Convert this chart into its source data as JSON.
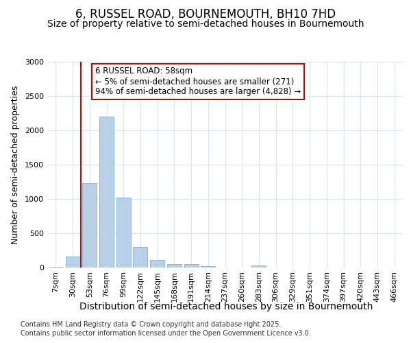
{
  "title_line1": "6, RUSSEL ROAD, BOURNEMOUTH, BH10 7HD",
  "title_line2": "Size of property relative to semi-detached houses in Bournemouth",
  "xlabel": "Distribution of semi-detached houses by size in Bournemouth",
  "ylabel": "Number of semi-detached properties",
  "footnote_line1": "Contains HM Land Registry data © Crown copyright and database right 2025.",
  "footnote_line2": "Contains public sector information licensed under the Open Government Licence v3.0.",
  "bar_labels": [
    "7sqm",
    "30sqm",
    "53sqm",
    "76sqm",
    "99sqm",
    "122sqm",
    "145sqm",
    "168sqm",
    "191sqm",
    "214sqm",
    "237sqm",
    "260sqm",
    "283sqm",
    "306sqm",
    "329sqm",
    "351sqm",
    "374sqm",
    "397sqm",
    "420sqm",
    "443sqm",
    "466sqm"
  ],
  "bar_values": [
    10,
    160,
    1230,
    2200,
    1020,
    300,
    110,
    55,
    50,
    25,
    5,
    0,
    30,
    0,
    0,
    0,
    0,
    0,
    0,
    0,
    0
  ],
  "bar_color": "#b8d0e8",
  "bar_edge_color": "#7aafd4",
  "vline_x": 1.5,
  "annotation_title": "6 RUSSEL ROAD: 58sqm",
  "annotation_line1": "← 5% of semi-detached houses are smaller (271)",
  "annotation_line2": "94% of semi-detached houses are larger (4,828) →",
  "annotation_box_color": "#ffffff",
  "annotation_border_color": "#cc0000",
  "vline_color": "#cc0000",
  "ylim": [
    0,
    3000
  ],
  "yticks": [
    0,
    500,
    1000,
    1500,
    2000,
    2500,
    3000
  ],
  "bg_color": "#ffffff",
  "plot_bg_color": "#ffffff",
  "grid_color": "#d8e4f0",
  "title_fontsize": 12,
  "subtitle_fontsize": 10,
  "xlabel_fontsize": 10,
  "ylabel_fontsize": 9,
  "tick_fontsize": 8,
  "annotation_fontsize": 8.5,
  "footnote_fontsize": 7
}
